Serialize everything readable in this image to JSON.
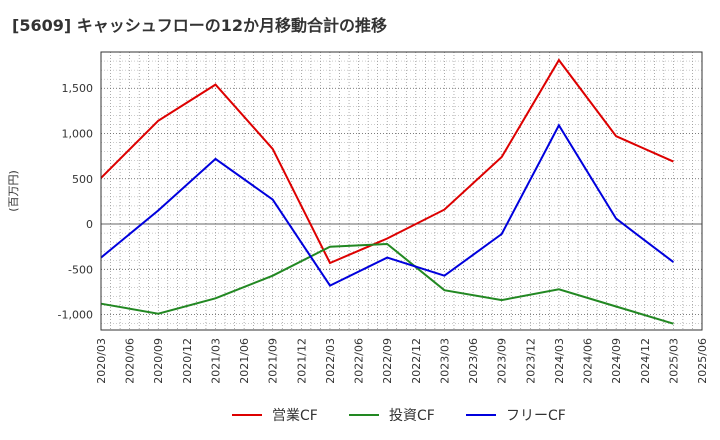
{
  "chart_data": {
    "type": "line",
    "title": "[5609]  キャッシュフローの12か月移動合計の推移",
    "ylabel": "(百万円)",
    "xlabel": "",
    "x_ticks": [
      "2020/03",
      "2020/06",
      "2020/09",
      "2020/12",
      "2021/03",
      "2021/06",
      "2021/09",
      "2021/12",
      "2022/03",
      "2022/06",
      "2022/09",
      "2022/12",
      "2023/03",
      "2023/06",
      "2023/09",
      "2023/12",
      "2024/03",
      "2024/06",
      "2024/09",
      "2024/12",
      "2025/03",
      "2025/06"
    ],
    "y_ticks": [
      -1000,
      -500,
      0,
      500,
      1000,
      1500
    ],
    "y_tick_labels": [
      "-1,000",
      "-500",
      "0",
      "500",
      "1,000",
      "1,500"
    ],
    "ylim": [
      -1170,
      1900
    ],
    "grid": true,
    "legend_position": "bottom",
    "series": [
      {
        "name": "営業CF",
        "color": "#dd0000",
        "points": [
          [
            "2020/03",
            510
          ],
          [
            "2020/09",
            1140
          ],
          [
            "2021/03",
            1540
          ],
          [
            "2021/09",
            830
          ],
          [
            "2022/03",
            -430
          ],
          [
            "2022/09",
            -160
          ],
          [
            "2023/03",
            160
          ],
          [
            "2023/09",
            740
          ],
          [
            "2024/03",
            1810
          ],
          [
            "2024/09",
            970
          ],
          [
            "2025/03",
            690
          ]
        ]
      },
      {
        "name": "投資CF",
        "color": "#228822",
        "points": [
          [
            "2020/03",
            -880
          ],
          [
            "2020/09",
            -990
          ],
          [
            "2021/03",
            -820
          ],
          [
            "2021/09",
            -570
          ],
          [
            "2022/03",
            -250
          ],
          [
            "2022/09",
            -220
          ],
          [
            "2023/03",
            -730
          ],
          [
            "2023/09",
            -840
          ],
          [
            "2024/03",
            -720
          ],
          [
            "2024/09",
            -910
          ],
          [
            "2025/03",
            -1100
          ]
        ]
      },
      {
        "name": "フリーCF",
        "color": "#0000dd",
        "points": [
          [
            "2020/03",
            -370
          ],
          [
            "2020/09",
            150
          ],
          [
            "2021/03",
            720
          ],
          [
            "2021/09",
            270
          ],
          [
            "2022/03",
            -680
          ],
          [
            "2022/09",
            -370
          ],
          [
            "2023/03",
            -570
          ],
          [
            "2023/09",
            -110
          ],
          [
            "2024/03",
            1090
          ],
          [
            "2024/09",
            60
          ],
          [
            "2025/03",
            -420
          ]
        ]
      }
    ]
  }
}
